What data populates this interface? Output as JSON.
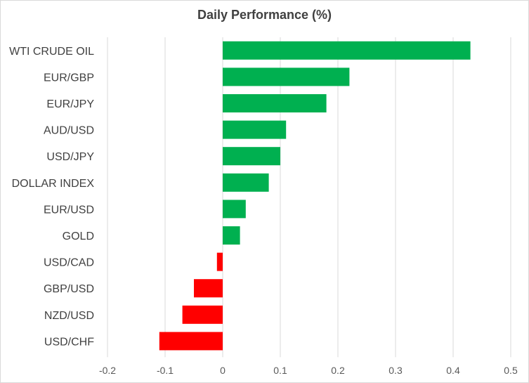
{
  "chart_data": {
    "type": "bar",
    "orientation": "horizontal",
    "title": "Daily Performance  (%)",
    "xlabel": "",
    "ylabel": "",
    "categories": [
      "WTI CRUDE OIL",
      "EUR/GBP",
      "EUR/JPY",
      "AUD/USD",
      "USD/JPY",
      "DOLLAR INDEX",
      "EUR/USD",
      "GOLD",
      "USD/CAD",
      "GBP/USD",
      "NZD/USD",
      "USD/CHF"
    ],
    "values": [
      0.43,
      0.22,
      0.18,
      0.11,
      0.1,
      0.08,
      0.04,
      0.03,
      -0.01,
      -0.05,
      -0.07,
      -0.11
    ],
    "xlim": [
      -0.2,
      0.5
    ],
    "xticks": [
      "-0.2",
      "-0.1",
      "0",
      "0.1",
      "0.2",
      "0.3",
      "0.4",
      "0.5"
    ],
    "grid": "vertical",
    "legend": "none",
    "colors": {
      "positive": "#00b050",
      "negative": "#ff0000",
      "grid": "#d9d9d9",
      "text": "#404040"
    }
  }
}
